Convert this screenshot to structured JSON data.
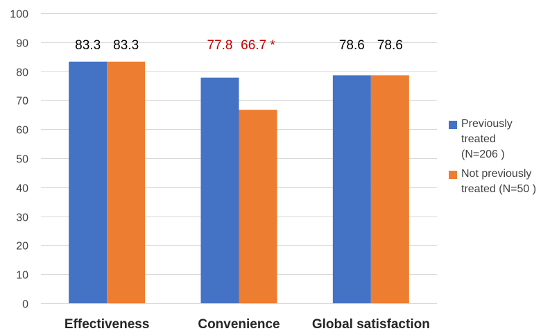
{
  "chart_data": {
    "type": "bar",
    "categories": [
      "Effectiveness",
      "Convenience",
      "Global satisfaction"
    ],
    "series": [
      {
        "name": "Previously treated (N=206 )",
        "values": [
          83.3,
          77.8,
          78.6
        ],
        "labels": [
          "83.3",
          "77.8",
          "78.6"
        ],
        "color": "#4472C4"
      },
      {
        "name": "Not previously treated (N=50 )",
        "values": [
          83.3,
          66.7,
          78.6
        ],
        "labels": [
          "83.3",
          "66.7 *",
          "78.6"
        ],
        "color": "#ED7D31"
      }
    ],
    "label_colors": [
      [
        "#000000",
        "#000000"
      ],
      [
        "#C00000",
        "#C00000"
      ],
      [
        "#000000",
        "#000000"
      ]
    ],
    "ylim": [
      0,
      100
    ],
    "yticks": [
      0,
      10,
      20,
      30,
      40,
      50,
      60,
      70,
      80,
      90,
      100
    ],
    "grid": true,
    "legend_position": "right"
  },
  "legend": {
    "items": [
      {
        "line1": "Previously",
        "line2": "treated",
        "line3": "(N=206 )",
        "color": "#4472C4"
      },
      {
        "line1": "Not previously",
        "line2": "treated (N=50 )",
        "color": "#ED7D31"
      }
    ]
  }
}
